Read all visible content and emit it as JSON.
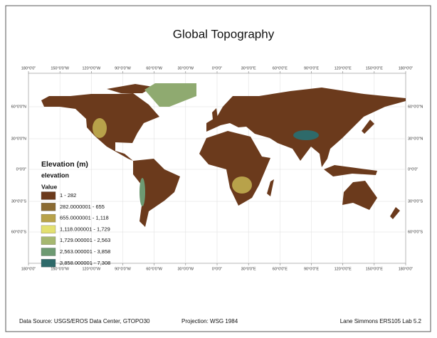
{
  "title": "Global Topography",
  "graticule": {
    "top": [
      "180°0'0\"",
      "150°0'0\"W",
      "120°0'0\"W",
      "90°0'0\"W",
      "60°0'0\"W",
      "30°0'0\"W",
      "0°0'0\"",
      "30°0'0\"E",
      "60°0'0\"E",
      "90°0'0\"E",
      "120°0'0\"E",
      "150°0'0\"E",
      "180°0'0\""
    ],
    "bottom": [
      "180°0'0\"",
      "150°0'0\"W",
      "120°0'0\"W",
      "90°0'0\"W",
      "60°0'0\"W",
      "30°0'0\"W",
      "0°0'0\"",
      "30°0'0\"E",
      "60°0'0\"E",
      "90°0'0\"E",
      "120°0'0\"E",
      "150°0'0\"E",
      "180°0'0\""
    ],
    "left": [
      "60°0'0\"N",
      "30°0'0\"N",
      "0°0'0\"",
      "30°0'0\"S",
      "60°0'0\"S"
    ],
    "right": [
      "60°0'0\"N",
      "30°0'0\"N",
      "0°0'0\"",
      "30°0'0\"S",
      "60°0'0\"S"
    ]
  },
  "legend": {
    "title": "Elevation (m)",
    "field": "elevation",
    "subtitle": "Value",
    "items": [
      {
        "label": "1 - 282",
        "color": "#6b3a1c"
      },
      {
        "label": "282.0000001 - 655",
        "color": "#8a6a32"
      },
      {
        "label": "655.0000001 - 1,118",
        "color": "#b8a24a"
      },
      {
        "label": "1,118.000001 - 1,729",
        "color": "#e3e070"
      },
      {
        "label": "1,729.000001 - 2,563",
        "color": "#a6b870"
      },
      {
        "label": "2,563.000001 - 3,858",
        "color": "#6d9a72"
      },
      {
        "label": "3,858.000001 - 7,308",
        "color": "#2e6a6a"
      }
    ]
  },
  "footer": {
    "source": "Data Source: USGS/EROS Data Center, GTOPO30",
    "projection": "Projection: WSG 1984",
    "author": "Lane Simmons ERS105 Lab 5.2"
  }
}
